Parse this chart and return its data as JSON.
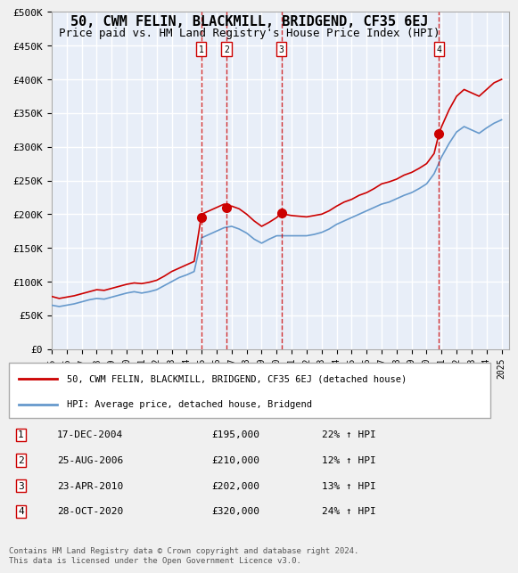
{
  "title": "50, CWM FELIN, BLACKMILL, BRIDGEND, CF35 6EJ",
  "subtitle": "Price paid vs. HM Land Registry's House Price Index (HPI)",
  "ylabel": "",
  "ylim": [
    0,
    500000
  ],
  "yticks": [
    0,
    50000,
    100000,
    150000,
    200000,
    250000,
    300000,
    350000,
    400000,
    450000,
    500000
  ],
  "ytick_labels": [
    "£0",
    "£50K",
    "£100K",
    "£150K",
    "£200K",
    "£250K",
    "£300K",
    "£350K",
    "£400K",
    "£450K",
    "£500K"
  ],
  "xlim_start": 1995.0,
  "xlim_end": 2025.5,
  "background_color": "#e8eef8",
  "plot_bg_color": "#e8eef8",
  "grid_color": "#ffffff",
  "red_line_color": "#cc0000",
  "blue_line_color": "#6699cc",
  "transaction_line_color": "#cc0000",
  "transaction_marker_color": "#cc0000",
  "transactions": [
    {
      "num": 1,
      "date": "17-DEC-2004",
      "year": 2004.96,
      "price": 195000,
      "pct": "22%",
      "marker_y": 195000
    },
    {
      "num": 2,
      "date": "25-AUG-2006",
      "year": 2006.65,
      "price": 210000,
      "pct": "12%",
      "marker_y": 210000
    },
    {
      "num": 3,
      "date": "23-APR-2010",
      "year": 2010.31,
      "price": 202000,
      "pct": "13%",
      "marker_y": 202000
    },
    {
      "num": 4,
      "date": "28-OCT-2020",
      "year": 2020.83,
      "price": 320000,
      "pct": "24%",
      "marker_y": 320000
    }
  ],
  "legend_label_red": "50, CWM FELIN, BLACKMILL, BRIDGEND, CF35 6EJ (detached house)",
  "legend_label_blue": "HPI: Average price, detached house, Bridgend",
  "footer": "Contains HM Land Registry data © Crown copyright and database right 2024.\nThis data is licensed under the Open Government Licence v3.0.",
  "hpi_red_x": [
    1995.0,
    1995.5,
    1996.0,
    1996.5,
    1997.0,
    1997.5,
    1998.0,
    1998.5,
    1999.0,
    1999.5,
    2000.0,
    2000.5,
    2001.0,
    2001.5,
    2002.0,
    2002.5,
    2003.0,
    2003.5,
    2004.0,
    2004.5,
    2004.96,
    2005.0,
    2005.5,
    2006.0,
    2006.5,
    2006.65,
    2007.0,
    2007.5,
    2008.0,
    2008.5,
    2009.0,
    2009.5,
    2010.0,
    2010.31,
    2010.5,
    2011.0,
    2011.5,
    2012.0,
    2012.5,
    2013.0,
    2013.5,
    2014.0,
    2014.5,
    2015.0,
    2015.5,
    2016.0,
    2016.5,
    2017.0,
    2017.5,
    2018.0,
    2018.5,
    2019.0,
    2019.5,
    2020.0,
    2020.5,
    2020.83,
    2021.0,
    2021.5,
    2022.0,
    2022.5,
    2023.0,
    2023.5,
    2024.0,
    2024.5,
    2025.0
  ],
  "hpi_red_y": [
    78000,
    75000,
    77000,
    79000,
    82000,
    85000,
    88000,
    87000,
    90000,
    93000,
    96000,
    98000,
    97000,
    99000,
    102000,
    108000,
    115000,
    120000,
    125000,
    130000,
    195000,
    200000,
    205000,
    210000,
    215000,
    210000,
    212000,
    208000,
    200000,
    190000,
    182000,
    188000,
    195000,
    202000,
    200000,
    198000,
    197000,
    196000,
    198000,
    200000,
    205000,
    212000,
    218000,
    222000,
    228000,
    232000,
    238000,
    245000,
    248000,
    252000,
    258000,
    262000,
    268000,
    275000,
    290000,
    320000,
    330000,
    355000,
    375000,
    385000,
    380000,
    375000,
    385000,
    395000,
    400000
  ],
  "hpi_blue_x": [
    1995.0,
    1995.5,
    1996.0,
    1996.5,
    1997.0,
    1997.5,
    1998.0,
    1998.5,
    1999.0,
    1999.5,
    2000.0,
    2000.5,
    2001.0,
    2001.5,
    2002.0,
    2002.5,
    2003.0,
    2003.5,
    2004.0,
    2004.5,
    2005.0,
    2005.5,
    2006.0,
    2006.5,
    2007.0,
    2007.5,
    2008.0,
    2008.5,
    2009.0,
    2009.5,
    2010.0,
    2010.5,
    2011.0,
    2011.5,
    2012.0,
    2012.5,
    2013.0,
    2013.5,
    2014.0,
    2014.5,
    2015.0,
    2015.5,
    2016.0,
    2016.5,
    2017.0,
    2017.5,
    2018.0,
    2018.5,
    2019.0,
    2019.5,
    2020.0,
    2020.5,
    2021.0,
    2021.5,
    2022.0,
    2022.5,
    2023.0,
    2023.5,
    2024.0,
    2024.5,
    2025.0
  ],
  "hpi_blue_y": [
    65000,
    63000,
    65000,
    67000,
    70000,
    73000,
    75000,
    74000,
    77000,
    80000,
    83000,
    85000,
    83000,
    85000,
    88000,
    94000,
    100000,
    106000,
    110000,
    115000,
    165000,
    170000,
    175000,
    180000,
    182000,
    178000,
    172000,
    163000,
    157000,
    163000,
    168000,
    168000,
    168000,
    168000,
    168000,
    170000,
    173000,
    178000,
    185000,
    190000,
    195000,
    200000,
    205000,
    210000,
    215000,
    218000,
    223000,
    228000,
    232000,
    238000,
    245000,
    260000,
    285000,
    305000,
    322000,
    330000,
    325000,
    320000,
    328000,
    335000,
    340000
  ]
}
